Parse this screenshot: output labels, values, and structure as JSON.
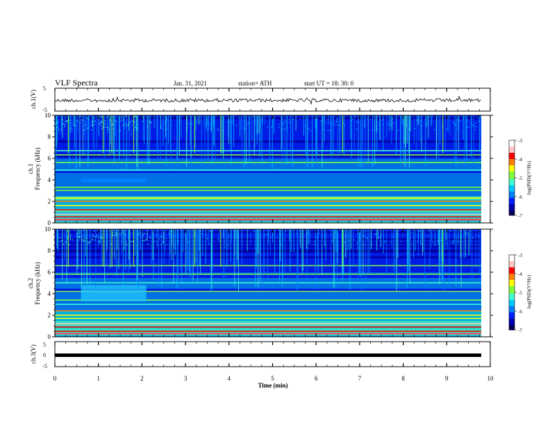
{
  "header": {
    "title": "VLF Spectra",
    "date": "Jan. 31, 2021",
    "station": "station= ATH",
    "start": "start  UT =   18: 30: 0"
  },
  "colors": {
    "colormap": [
      "#00005a",
      "#0000b4",
      "#0020ff",
      "#0080ff",
      "#00c8ff",
      "#40ffd0",
      "#80ff40",
      "#ffff00",
      "#ff8000",
      "#ff0000",
      "#ffc8c8",
      "#ffffff"
    ]
  },
  "chart_data": [
    {
      "type": "line",
      "panel": "ch1-voltage",
      "ylabel": "ch.1(V)",
      "ylim": [
        -5,
        5
      ],
      "yticks": [
        "5",
        "-5"
      ],
      "xlim": [
        0,
        10
      ],
      "baseline": 0,
      "series": [
        {
          "values_description_free": true,
          "level": 0
        }
      ]
    },
    {
      "type": "heatmap",
      "panel": "ch1-spectrogram",
      "ylabel": "ch.1",
      "ylabel2": "Frequency (kHz)",
      "ylim": [
        0,
        10
      ],
      "yticks": [
        "0",
        "2",
        "4",
        "6",
        "8",
        "10"
      ],
      "xlim": [
        0,
        10
      ],
      "colorbar": {
        "label": "log(PSD)(V²/Hz)",
        "range": [
          -7,
          -3
        ],
        "ticks": [
          "-3",
          "-4",
          "-5",
          "-6",
          "-7"
        ]
      },
      "bands_khz": [
        0.3,
        0.55,
        0.8,
        1.2,
        1.6,
        2.0,
        2.3,
        3.0,
        3.3,
        4.9,
        5.6,
        6.3,
        6.7
      ],
      "feature_khz": {
        "f": 3.95,
        "t_start": 0.6,
        "t_end": 2.1
      }
    },
    {
      "type": "heatmap",
      "panel": "ch2-spectrogram",
      "ylabel": "ch.2",
      "ylabel2": "Frequency (kHz)",
      "ylim": [
        0,
        10
      ],
      "yticks": [
        "0",
        "2",
        "4",
        "6",
        "8",
        "10"
      ],
      "xlim": [
        0,
        10
      ],
      "colorbar": {
        "label": "log(PSD)(V²/Hz)",
        "range": [
          -7,
          -3
        ],
        "ticks": [
          "-3",
          "-4",
          "-5",
          "-6",
          "-7"
        ]
      },
      "bands_khz": [
        0.5,
        0.9,
        1.2,
        1.7,
        2.0,
        2.4,
        3.0,
        3.4,
        4.2,
        5.0,
        5.8,
        6.6
      ],
      "feature_khz": {
        "f_low": 3.3,
        "f_high": 4.8,
        "t_start": 0.6,
        "t_end": 2.1
      }
    },
    {
      "type": "line",
      "panel": "ch3-voltage",
      "ylabel": "ch.3(V)",
      "ylim": [
        -5,
        5
      ],
      "yticks": [
        "5",
        "0",
        "-5"
      ],
      "xlim": [
        0,
        10
      ],
      "series": [
        {
          "level": -0.2
        }
      ]
    }
  ],
  "xaxis": {
    "label": "Time  (min)",
    "ticks": [
      "0",
      "1",
      "2",
      "3",
      "4",
      "5",
      "6",
      "7",
      "8",
      "9",
      "10"
    ]
  }
}
